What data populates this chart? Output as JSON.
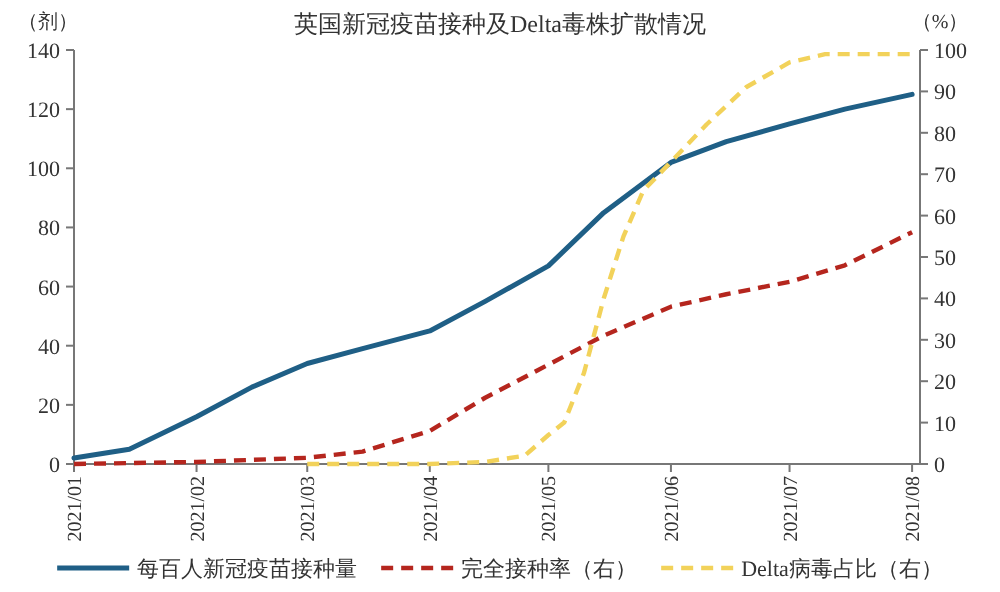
{
  "chart_data": {
    "type": "line",
    "title": "英国新冠疫苗接种及Delta毒株扩散情况",
    "ylabel": "（剂）",
    "y2label": "（%）",
    "xlim": [
      "2021-01-01",
      "2021-08-03"
    ],
    "xticks": [
      {
        "value": "2021-01-01",
        "label": "2021/01"
      },
      {
        "value": "2021-02-01",
        "label": "2021/02"
      },
      {
        "value": "2021-03-01",
        "label": "2021/03"
      },
      {
        "value": "2021-04-01",
        "label": "2021/04"
      },
      {
        "value": "2021-05-01",
        "label": "2021/05"
      },
      {
        "value": "2021-06-01",
        "label": "2021/06"
      },
      {
        "value": "2021-07-01",
        "label": "2021/07"
      },
      {
        "value": "2021-08-01",
        "label": "2021/08"
      }
    ],
    "ylim": [
      0,
      140
    ],
    "yticks": [
      0,
      20,
      40,
      60,
      80,
      100,
      120,
      140
    ],
    "y2lim": [
      0,
      100
    ],
    "y2ticks": [
      0,
      10,
      20,
      30,
      40,
      50,
      60,
      70,
      80,
      90,
      100
    ],
    "legend": "bottom",
    "grid": false,
    "series": [
      {
        "name": "每百人新冠疫苗接种量",
        "color": "#1f5f86",
        "line_style": "solid",
        "x": [
          "2021-01-01",
          "2021-01-15",
          "2021-02-01",
          "2021-02-15",
          "2021-03-01",
          "2021-03-15",
          "2021-04-01",
          "2021-04-15",
          "2021-05-01",
          "2021-05-15",
          "2021-06-01",
          "2021-06-15",
          "2021-07-01",
          "2021-07-15",
          "2021-08-01"
        ],
        "values": [
          2,
          5,
          16,
          26,
          34,
          39,
          45,
          55,
          67,
          85,
          102,
          109,
          115,
          120,
          125
        ]
      },
      {
        "name": "完全接种率（右）",
        "color": "#b5261e",
        "line_style": "dashed",
        "axis": "y2",
        "x": [
          "2021-01-01",
          "2021-02-01",
          "2021-03-01",
          "2021-03-15",
          "2021-04-01",
          "2021-04-15",
          "2021-05-01",
          "2021-05-15",
          "2021-06-01",
          "2021-06-15",
          "2021-07-01",
          "2021-07-15",
          "2021-08-01"
        ],
        "values": [
          0,
          0.5,
          1.5,
          3,
          8,
          16,
          24,
          31,
          38,
          41,
          44,
          48,
          56
        ]
      },
      {
        "name": "Delta病毒占比（右）",
        "color": "#f2d25a",
        "line_style": "dashed",
        "axis": "y2",
        "x": [
          "2021-03-01",
          "2021-04-01",
          "2021-04-15",
          "2021-04-25",
          "2021-05-01",
          "2021-05-05",
          "2021-05-10",
          "2021-05-15",
          "2021-05-20",
          "2021-05-25",
          "2021-06-01",
          "2021-06-10",
          "2021-06-20",
          "2021-07-01",
          "2021-07-10",
          "2021-08-01"
        ],
        "values": [
          0,
          0,
          0.5,
          2,
          7,
          10,
          22,
          40,
          55,
          66,
          73,
          82,
          91,
          97,
          99,
          99
        ]
      }
    ]
  }
}
